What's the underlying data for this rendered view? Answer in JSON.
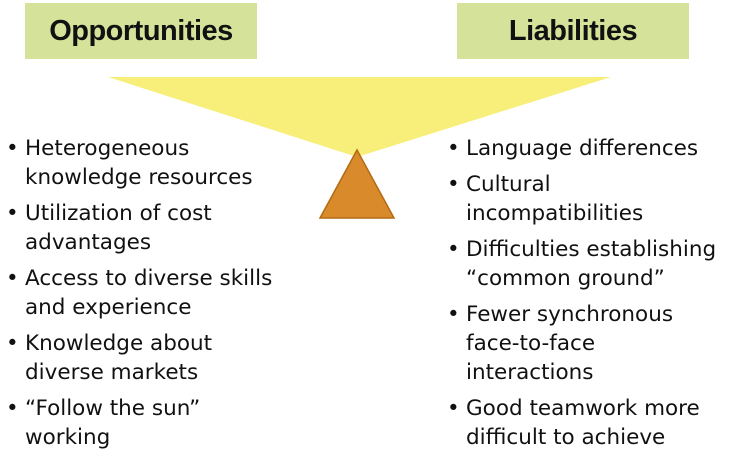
{
  "colors": {
    "header_fill": "#d5e39a",
    "beam_fill": "#f7ef7a",
    "fulcrum_fill": "#d98a2a",
    "fulcrum_stroke": "#b36a14",
    "text": "#111111"
  },
  "header_left": {
    "label": "Opportunities"
  },
  "header_right": {
    "label": "Liabilities"
  },
  "bullet_symbol": "•",
  "opportunities": [
    {
      "text": "Heterogeneous\nknowledge resources"
    },
    {
      "text": "Utilization of cost\nadvantages"
    },
    {
      "text": "Access to diverse skills\nand experience"
    },
    {
      "text": "Knowledge about\ndiverse markets"
    },
    {
      "text": "“Follow the sun”\nworking"
    }
  ],
  "liabilities": [
    {
      "text": "Language differences"
    },
    {
      "text": "Cultural\nincompatibilities"
    },
    {
      "text": "Difficulties establishing\n“common ground”"
    },
    {
      "text": "Fewer synchronous\nface-to-face\ninteractions"
    },
    {
      "text": "Good teamwork more\ndifficult to achieve"
    }
  ]
}
